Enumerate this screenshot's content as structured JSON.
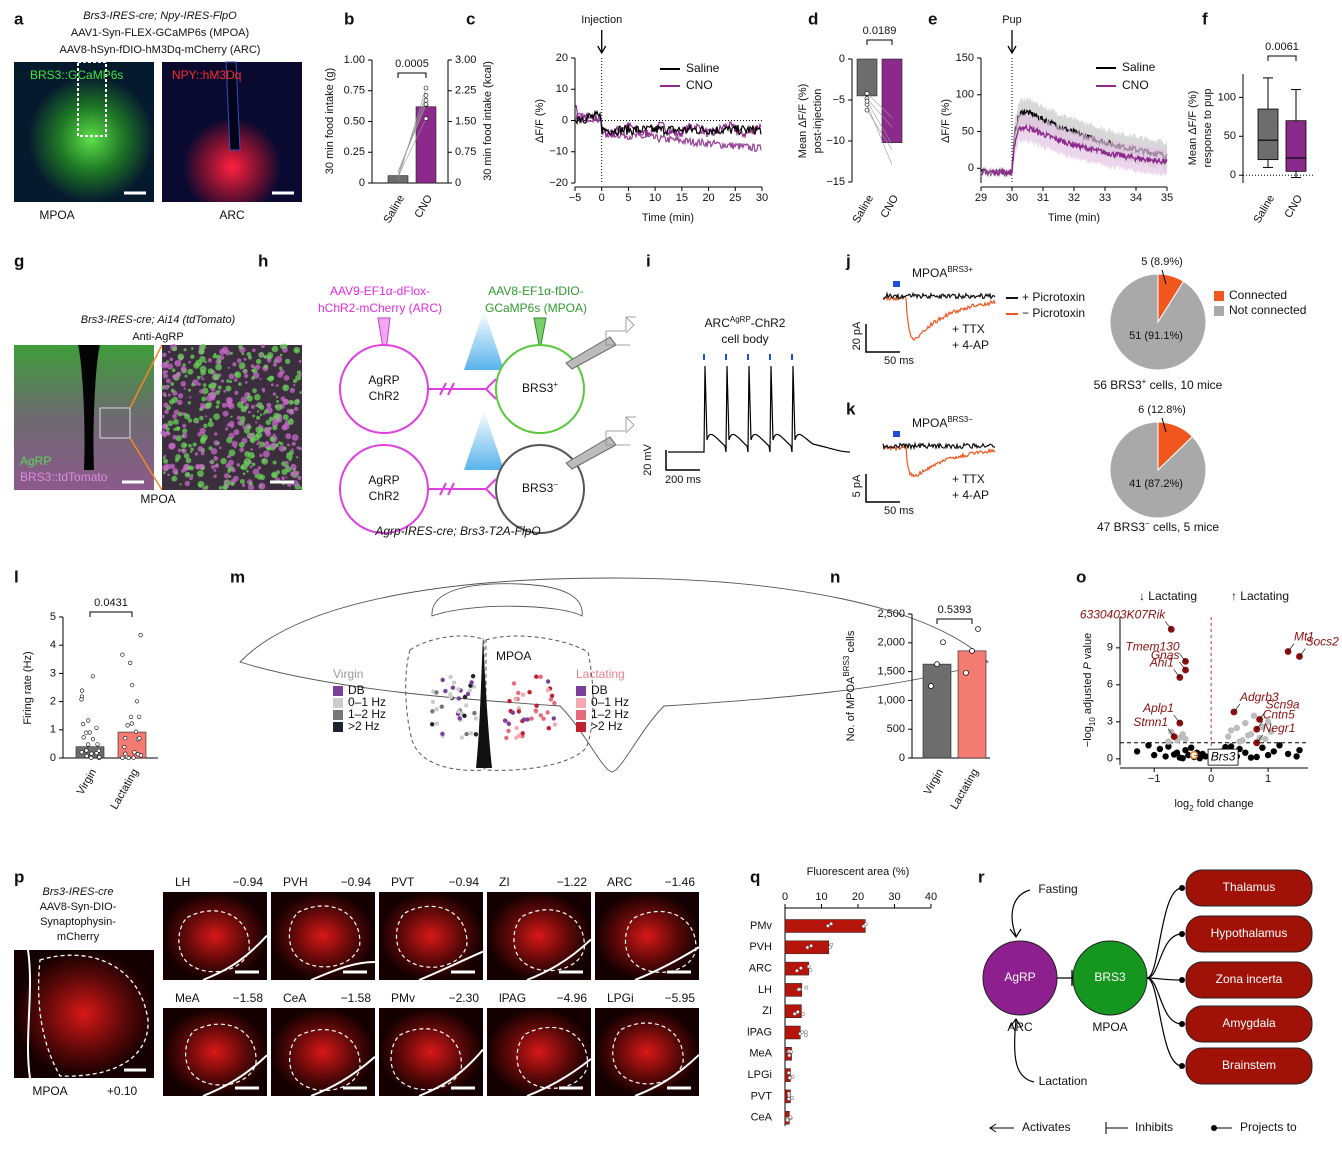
{
  "letters": [
    "a",
    "b",
    "c",
    "d",
    "e",
    "f",
    "g",
    "h",
    "i",
    "j",
    "k",
    "l",
    "m",
    "n",
    "o",
    "p",
    "q",
    "r"
  ],
  "a": {
    "genotype": "Brs3-IRES-cre; Npy-IRES-FlpO",
    "virus1": "AAV1-Syn-FLEX-GCaMP6s (MPOA)",
    "virus2": "AAV8-hSyn-fDIO-hM3Dq-mCherry (ARC)",
    "stain1": "BRS3::GCaMP6s",
    "stain2": "NPY::hM3Dq",
    "region1": "MPOA",
    "region2": "ARC"
  },
  "b": {
    "type": "bar",
    "ylabel": "30 min food intake (g)",
    "y2label": "30 min food intake (kcal)",
    "categories": [
      "Saline",
      "CNO"
    ],
    "values": [
      0.06,
      0.62
    ],
    "colors": [
      "#6d6d6d",
      "#8b2a8b"
    ],
    "ylim": [
      0,
      1
    ],
    "yticks": [
      0,
      0.25,
      {
        "value": 0.5,
        "label": "0.50"
      },
      0.75,
      {
        "value": 1,
        "label": "1.00"
      }
    ],
    "y2lim": [
      0,
      3
    ],
    "y2ticks": [
      0,
      0.75,
      {
        "value": 1.5,
        "label": "1.50"
      },
      2.25,
      {
        "value": 3,
        "label": "3.00"
      }
    ],
    "p": "0.0005"
  },
  "c": {
    "type": "line",
    "ylabel": "ΔF/F (%)",
    "xlabel": "Time (min)",
    "annotation": "Injection",
    "xlim": [
      -5,
      30
    ],
    "xticks": [
      {
        "value": -5,
        "label": "−5"
      },
      0,
      5,
      10,
      15,
      20,
      25,
      30
    ],
    "ylim": [
      -20,
      20
    ],
    "yticks": [
      20,
      10,
      0,
      {
        "value": -10,
        "label": "−10"
      },
      {
        "value": -20,
        "label": "−20"
      }
    ],
    "series": [
      {
        "name": "Saline",
        "color": "#000000"
      },
      {
        "name": "CNO",
        "color": "#8b2a8b"
      }
    ]
  },
  "d": {
    "type": "bar",
    "ylabel": [
      "Mean ΔF/F (%)",
      "post-injection"
    ],
    "categories": [
      "Saline",
      "CNO"
    ],
    "values": [
      -4.5,
      -10.2
    ],
    "colors": [
      "#6d6d6d",
      "#8b2a8b"
    ],
    "ylim": [
      -15,
      0
    ],
    "yticks": [
      0,
      {
        "value": -5,
        "label": "−5"
      },
      {
        "value": -10,
        "label": "−10"
      },
      {
        "value": -15,
        "label": "−15"
      }
    ],
    "p": "0.0189"
  },
  "e": {
    "type": "line",
    "ylabel": "ΔF/F (%)",
    "xlabel": "Time (min)",
    "annotation": "Pup",
    "xlim": [
      29,
      35
    ],
    "xticks": [
      29,
      30,
      31,
      32,
      33,
      34,
      35
    ],
    "ylim": [
      -20,
      150
    ],
    "yticks": [
      0,
      50,
      100,
      150
    ],
    "series": [
      {
        "name": "Saline",
        "color": "#000000"
      },
      {
        "name": "CNO",
        "color": "#8b2a8b"
      }
    ]
  },
  "f": {
    "type": "box",
    "ylabel": [
      "Mean ΔF/F (%)",
      "response to pup"
    ],
    "categories": [
      "Saline",
      "CNO"
    ],
    "colors": [
      "#6d6d6d",
      "#8b2a8b"
    ],
    "min": [
      10,
      -3
    ],
    "q1": [
      20,
      5
    ],
    "median": [
      45,
      22
    ],
    "q3": [
      85,
      70
    ],
    "max": [
      125,
      110
    ],
    "ylim": [
      -10,
      130
    ],
    "yticks": [
      0,
      50,
      100
    ],
    "p": "0.0061"
  },
  "g": {
    "genotype": "Brs3-IRES-cre; Ai14 (tdTomato)",
    "stain": "Anti-AgRP",
    "label1": "AgRP",
    "label2": "BRS3::tdTomato",
    "region": "MPOA"
  },
  "h": {
    "virus_arc": [
      "AAV9-EF1α-dFlox-",
      "hChR2-mCherry (ARC)"
    ],
    "virus_mpoa": [
      "AAV8-EF1α-fDIO-",
      "GCaMP6s (MPOA)"
    ],
    "agrp": [
      "AgRP",
      "ChR2"
    ],
    "brs3": "BRS3",
    "plus": "+",
    "minus": "−",
    "genotype": "Agrp-IRES-cre; Brs3-T2A-FlpO"
  },
  "i": {
    "title": [
      "ARC",
      "AgRP",
      "-ChR2"
    ],
    "subtitle": "cell body",
    "scale_v": "20 mV",
    "scale_t": "200 ms"
  },
  "j": {
    "type": "pie",
    "title": [
      "MPOA",
      "BRS3+"
    ],
    "legend": [
      "+ Picrotoxin",
      "− Picrotoxin"
    ],
    "drugs": [
      "+ TTX",
      "+ 4-AP"
    ],
    "scale_v": "20 pA",
    "scale_t": "50 ms",
    "values": [
      5,
      51
    ],
    "value_labels": [
      "5 (8.9%)",
      "51 (91.1%)"
    ],
    "colors": [
      "#f0561e",
      "#a9a9a9"
    ],
    "pie_legend": [
      "Connected",
      "Not connected"
    ],
    "caption": [
      "56 BRS3",
      "+",
      " cells, 10 mice"
    ]
  },
  "k": {
    "type": "pie",
    "title": [
      "MPOA",
      "BRS3−"
    ],
    "drugs": [
      "+ TTX",
      "+ 4-AP"
    ],
    "scale_v": "5 pA",
    "scale_t": "50 ms",
    "values": [
      6,
      41
    ],
    "value_labels": [
      "6 (12.8%)",
      "41 (87.2%)"
    ],
    "colors": [
      "#f0561e",
      "#a9a9a9"
    ],
    "caption": [
      "47 BRS3",
      "−",
      " cells, 5 mice"
    ]
  },
  "l": {
    "type": "bar",
    "ylabel": "Firing rate (Hz)",
    "categories": [
      "Virgin",
      "Lactating"
    ],
    "values": [
      0.4,
      0.92
    ],
    "colors": [
      "#6d6d6d",
      "#f47b72"
    ],
    "ylim": [
      0,
      5
    ],
    "yticks": [
      0,
      1,
      2,
      3,
      4,
      5
    ],
    "p": "0.0431"
  },
  "m": {
    "region": "MPOA",
    "virgin": {
      "title": "Virgin",
      "items": [
        "DB",
        "0–1 Hz",
        "1–2 Hz",
        ">2 Hz"
      ],
      "colors": [
        "#7a3f98",
        "#cccccc",
        "#777777",
        "#1c2430"
      ]
    },
    "lactating": {
      "title": "Lactating",
      "items": [
        "DB",
        "0–1 Hz",
        "1–2 Hz",
        ">2 Hz"
      ],
      "colors": [
        "#7a3f98",
        "#f4a8b0",
        "#e56a7b",
        "#c0202f"
      ]
    }
  },
  "n": {
    "type": "bar",
    "ylabel": [
      "No. of MPOA",
      "BRS3",
      " cells"
    ],
    "categories": [
      "Virgin",
      "Lactating"
    ],
    "values": [
      1630,
      1860
    ],
    "colors": [
      "#6d6d6d",
      "#f47b72"
    ],
    "ylim": [
      0,
      2500
    ],
    "yticks": [
      0,
      500,
      {
        "value": 1000,
        "label": "1,000"
      },
      {
        "value": 1500,
        "label": "1,500"
      },
      {
        "value": 2000,
        "label": "2,000"
      },
      {
        "value": 2500,
        "label": "2,500"
      }
    ],
    "p": "0.5393"
  },
  "o": {
    "type": "scatter",
    "down": "↓ Lactating",
    "up": "↑ Lactating",
    "xlabel": [
      "log",
      "2",
      " fold change"
    ],
    "ylabel": [
      "−log",
      "10",
      " adjusted ",
      "P",
      " value"
    ],
    "xlim": [
      -1.6,
      1.7
    ],
    "xticks": [
      {
        "value": -1,
        "label": "−1"
      },
      0,
      1
    ],
    "ylim": [
      -0.5,
      11.5
    ],
    "yticks": [
      0,
      3,
      6,
      9
    ],
    "hline": 1.3,
    "vline": 0,
    "genes": [
      {
        "label": "6330403K07Rik",
        "x": -0.7,
        "y": 10.5
      },
      {
        "label": "Tmem130",
        "x": -0.45,
        "y": 7.9
      },
      {
        "label": "Gnas",
        "x": -0.45,
        "y": 7.2
      },
      {
        "label": "Ahi1",
        "x": -0.55,
        "y": 6.6
      },
      {
        "label": "Aplp1",
        "x": -0.55,
        "y": 2.9
      },
      {
        "label": "Stmn1",
        "x": -0.65,
        "y": 1.8
      },
      {
        "label": "Brs3",
        "x": -0.3,
        "y": 0.3
      },
      {
        "label": "Mt1",
        "x": 1.35,
        "y": 8.7
      },
      {
        "label": "Socs2",
        "x": 1.55,
        "y": 8.3
      },
      {
        "label": "Adgrb3",
        "x": 0.4,
        "y": 3.8
      },
      {
        "label": "Scn9a",
        "x": 0.85,
        "y": 3.2
      },
      {
        "label": "Cntn5",
        "x": 0.8,
        "y": 2.4
      },
      {
        "label": "Negr1",
        "x": 0.8,
        "y": 1.3
      }
    ],
    "nonsig": {
      "x": [
        -1.3,
        -1.1,
        -1.0,
        -0.9,
        -0.8,
        -0.75,
        -0.6,
        -0.55,
        -0.45,
        -0.4,
        -0.35,
        -0.3,
        -0.25,
        -0.2,
        -0.15,
        -0.1,
        0.1,
        0.2,
        0.3,
        0.35,
        0.45,
        0.5,
        0.6,
        0.7,
        0.9,
        1.0,
        1.1,
        1.2,
        1.35,
        1.5,
        1.55,
        -0.65,
        -0.5,
        0.25,
        0.8
      ],
      "y": [
        0.6,
        1.1,
        0.3,
        0.8,
        0.2,
        1.0,
        0.5,
        0.1,
        0.7,
        0.3,
        0.9,
        0.15,
        0.5,
        0.05,
        0.4,
        0.2,
        0.1,
        0.6,
        0.3,
        1.0,
        0.2,
        0.8,
        0.5,
        0.1,
        0.9,
        0.3,
        0.6,
        1.1,
        0.4,
        0.2,
        0.7,
        0.35,
        0.05,
        0.95,
        0.15
      ]
    },
    "sig": {
      "x": [
        -0.7,
        -0.6,
        -0.5,
        -0.45,
        -0.75,
        0.3,
        0.45,
        0.55,
        0.6,
        0.7,
        0.75,
        0.85,
        0.9,
        1.0,
        1.05,
        0.5,
        0.65,
        0.95,
        0.35,
        -0.55
      ],
      "y": [
        2.2,
        1.5,
        2.0,
        1.6,
        1.4,
        1.8,
        2.5,
        1.5,
        2.9,
        2.0,
        3.5,
        1.7,
        2.6,
        3.0,
        2.2,
        1.4,
        1.9,
        1.6,
        2.3,
        1.7
      ]
    }
  },
  "p": {
    "genotype": "Brs3-IRES-cre",
    "virus": [
      "AAV8-Syn-DIO-",
      "Synaptophysin-",
      "mCherry"
    ],
    "region": "MPOA",
    "coord": "+0.10",
    "tiles": [
      {
        "name": "LH",
        "coord": "−0.94"
      },
      {
        "name": "PVH",
        "coord": "−0.94"
      },
      {
        "name": "PVT",
        "coord": "−0.94"
      },
      {
        "name": "ZI",
        "coord": "−1.22"
      },
      {
        "name": "ARC",
        "coord": "−1.46"
      },
      {
        "name": "MeA",
        "coord": "−1.58"
      },
      {
        "name": "CeA",
        "coord": "−1.58"
      },
      {
        "name": "PMv",
        "coord": "−2.30"
      },
      {
        "name": "lPAG",
        "coord": "−4.96"
      },
      {
        "name": "LPGi",
        "coord": "−5.95"
      }
    ]
  },
  "q": {
    "type": "hbar",
    "xlabel": "Fluorescent area (%)",
    "categories": [
      "PMv",
      "PVH",
      "ARC",
      "LH",
      "ZI",
      "lPAG",
      "MeA",
      "LPGi",
      "PVT",
      "CeA"
    ],
    "values": [
      22,
      12,
      6.5,
      4.6,
      4.5,
      4.2,
      1.8,
      1.5,
      1.5,
      1.2
    ],
    "color": "#b5150b",
    "xlim": [
      0,
      40
    ],
    "xticks": [
      0,
      10,
      20,
      30,
      40
    ]
  },
  "r": {
    "fasting": "Fasting",
    "lactation": "Lactation",
    "agrp": "AgRP",
    "arc": "ARC",
    "brs3": "BRS3",
    "mpoa": "MPOA",
    "targets": [
      "Thalamus",
      "Hypothalamus",
      "Zona incerta",
      "Amygdala",
      "Brainstem"
    ],
    "legend": [
      "Activates",
      "Inhibits",
      "Projects to"
    ]
  }
}
